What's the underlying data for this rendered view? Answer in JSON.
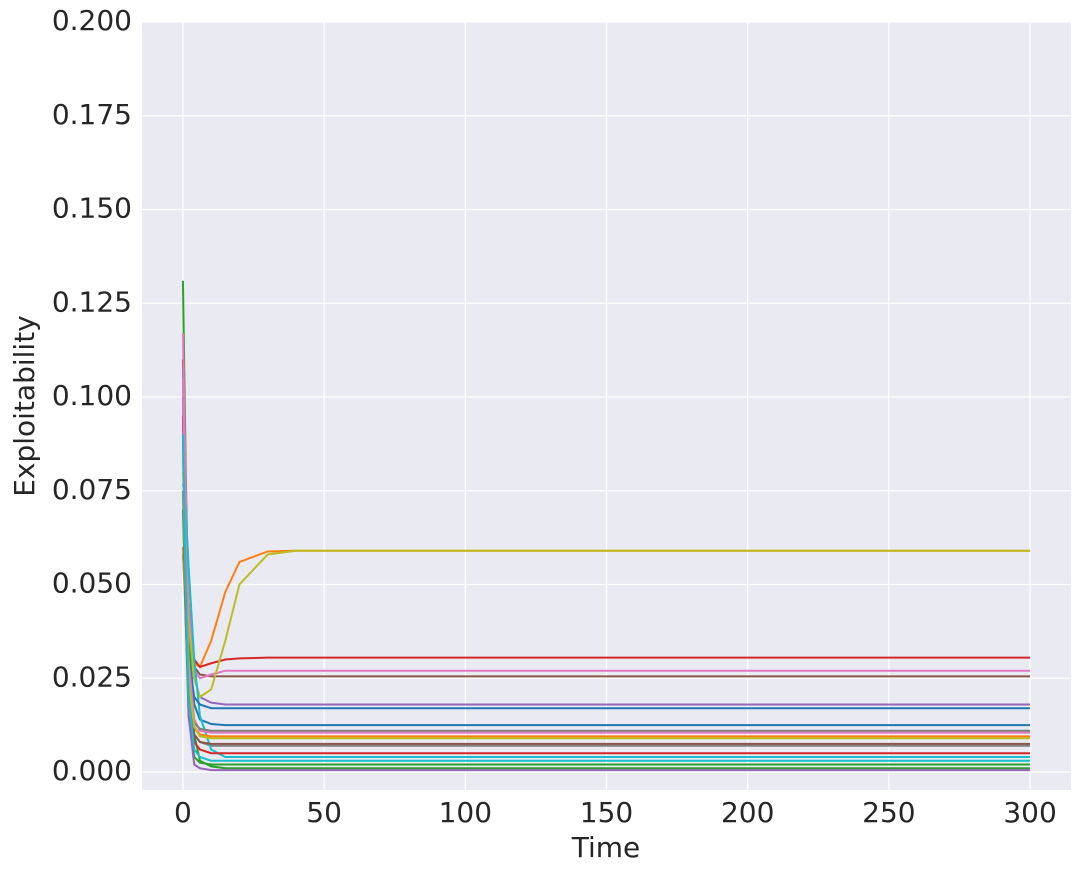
{
  "chart_data": {
    "type": "line",
    "xlabel": "Time",
    "ylabel": "Exploitability",
    "x": [
      0,
      1,
      2,
      4,
      6,
      10,
      15,
      20,
      30,
      40,
      300
    ],
    "xlim": [
      -14.5,
      314.5
    ],
    "ylim": [
      -0.0048,
      0.2
    ],
    "xticks": [
      0,
      50,
      100,
      150,
      200,
      250,
      300
    ],
    "yticks": [
      {
        "value": 0,
        "label": "0.000"
      },
      {
        "value": 0.025,
        "label": "0.025"
      },
      {
        "value": 0.05,
        "label": "0.050"
      },
      {
        "value": 0.075,
        "label": "0.075"
      },
      {
        "value": 0.1,
        "label": "0.100"
      },
      {
        "value": 0.125,
        "label": "0.125"
      },
      {
        "value": 0.15,
        "label": "0.150"
      },
      {
        "value": 0.175,
        "label": "0.175"
      },
      {
        "value": 0.2,
        "label": "0.200"
      }
    ],
    "grid": true,
    "series": [
      {
        "color": "#1f77b4",
        "values": [
          0.095,
          0.06,
          0.035,
          0.018,
          0.014,
          0.0128,
          0.0125,
          0.0125,
          0.0125,
          0.0125,
          0.0125
        ]
      },
      {
        "color": "#ff7f0e",
        "values": [
          0.104,
          0.07,
          0.045,
          0.029,
          0.028,
          0.035,
          0.048,
          0.056,
          0.0588,
          0.059,
          0.059
        ]
      },
      {
        "color": "#2ca02c",
        "values": [
          0.131,
          0.08,
          0.04,
          0.01,
          0.003,
          0.0015,
          0.001,
          0.001,
          0.001,
          0.001,
          0.001
        ]
      },
      {
        "color": "#d62728",
        "values": [
          0.11,
          0.07,
          0.045,
          0.03,
          0.028,
          0.029,
          0.03,
          0.0303,
          0.0305,
          0.0305,
          0.0305
        ]
      },
      {
        "color": "#9467bd",
        "values": [
          0.108,
          0.07,
          0.045,
          0.025,
          0.02,
          0.0185,
          0.018,
          0.018,
          0.018,
          0.018,
          0.018
        ]
      },
      {
        "color": "#8c564b",
        "values": [
          0.09,
          0.06,
          0.04,
          0.028,
          0.026,
          0.0255,
          0.0255,
          0.0255,
          0.0255,
          0.0255,
          0.0255
        ]
      },
      {
        "color": "#e377c2",
        "values": [
          0.117,
          0.075,
          0.045,
          0.027,
          0.025,
          0.026,
          0.027,
          0.027,
          0.027,
          0.027,
          0.027
        ]
      },
      {
        "color": "#7f7f7f",
        "values": [
          0.085,
          0.05,
          0.025,
          0.01,
          0.008,
          0.007,
          0.007,
          0.007,
          0.007,
          0.007,
          0.007
        ]
      },
      {
        "color": "#bcbd22",
        "values": [
          0.08,
          0.06,
          0.04,
          0.025,
          0.02,
          0.022,
          0.035,
          0.05,
          0.058,
          0.059,
          0.059
        ]
      },
      {
        "color": "#17becf",
        "values": [
          0.077,
          0.07,
          0.055,
          0.03,
          0.015,
          0.006,
          0.004,
          0.004,
          0.004,
          0.004,
          0.004
        ]
      },
      {
        "color": "#1f77b4",
        "values": [
          0.058,
          0.045,
          0.03,
          0.02,
          0.018,
          0.017,
          0.017,
          0.017,
          0.017,
          0.017,
          0.017
        ]
      },
      {
        "color": "#ff7f0e",
        "values": [
          0.06,
          0.04,
          0.02,
          0.012,
          0.01,
          0.0095,
          0.0095,
          0.0095,
          0.0095,
          0.0095,
          0.0095
        ]
      },
      {
        "color": "#2ca02c",
        "values": [
          0.07,
          0.04,
          0.015,
          0.004,
          0.0025,
          0.002,
          0.002,
          0.002,
          0.002,
          0.002,
          0.002
        ]
      },
      {
        "color": "#d62728",
        "values": [
          0.095,
          0.05,
          0.02,
          0.008,
          0.006,
          0.005,
          0.005,
          0.005,
          0.005,
          0.005,
          0.005
        ]
      },
      {
        "color": "#9467bd",
        "values": [
          0.1,
          0.05,
          0.015,
          0.002,
          0.001,
          0.0005,
          0.0005,
          0.0005,
          0.0005,
          0.0005,
          0.0005
        ]
      },
      {
        "color": "#8c564b",
        "values": [
          0.09,
          0.055,
          0.025,
          0.01,
          0.008,
          0.0075,
          0.0075,
          0.0075,
          0.0075,
          0.0075,
          0.0075
        ]
      },
      {
        "color": "#e377c2",
        "values": [
          0.105,
          0.06,
          0.03,
          0.014,
          0.011,
          0.0105,
          0.0105,
          0.0105,
          0.0105,
          0.0105,
          0.0105
        ]
      },
      {
        "color": "#7f7f7f",
        "values": [
          0.075,
          0.04,
          0.02,
          0.013,
          0.0115,
          0.011,
          0.011,
          0.011,
          0.011,
          0.011,
          0.011
        ]
      },
      {
        "color": "#bcbd22",
        "values": [
          0.085,
          0.05,
          0.025,
          0.012,
          0.0095,
          0.009,
          0.009,
          0.009,
          0.009,
          0.009,
          0.009
        ]
      },
      {
        "color": "#17becf",
        "values": [
          0.09,
          0.05,
          0.02,
          0.006,
          0.004,
          0.003,
          0.003,
          0.003,
          0.003,
          0.003,
          0.003
        ]
      }
    ]
  }
}
